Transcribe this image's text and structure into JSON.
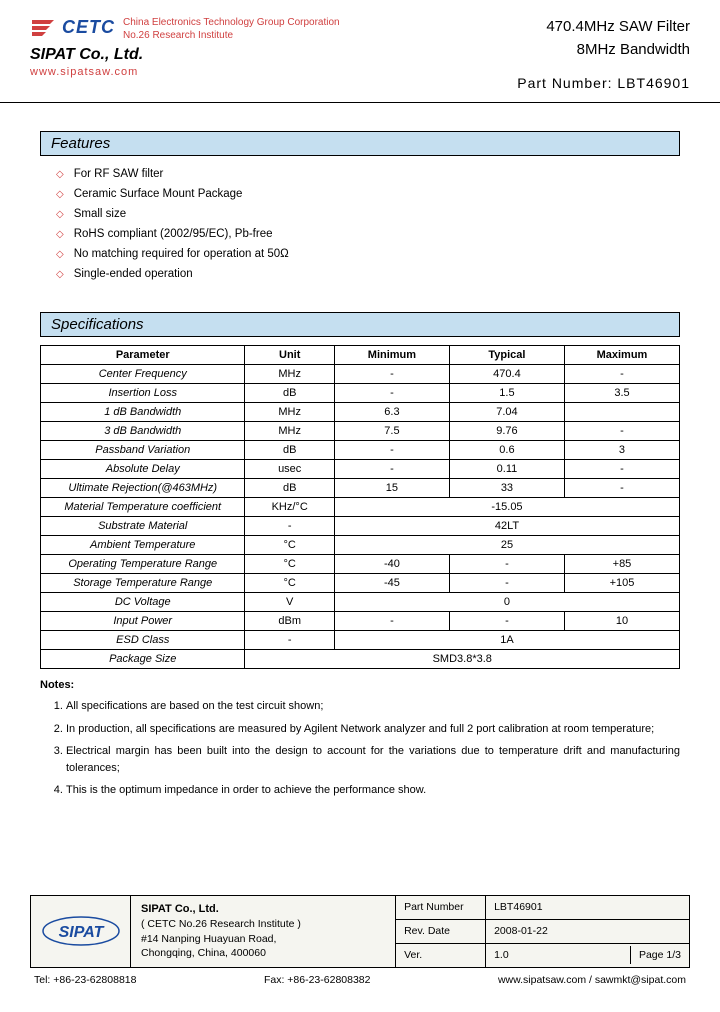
{
  "header": {
    "logo_text": "CETC",
    "logo_sub1": "China Electronics Technology Group Corporation",
    "logo_sub2": "No.26 Research Institute",
    "company": "SIPAT Co., Ltd.",
    "website": "www.sipatsaw.com",
    "title1": "470.4MHz SAW Filter",
    "title2": "8MHz Bandwidth",
    "part_label": "Part Number: LBT46901"
  },
  "features": {
    "title": "Features",
    "items": [
      "For RF SAW filter",
      "Ceramic Surface Mount Package",
      "Small size",
      "RoHS compliant (2002/95/EC), Pb-free",
      "No matching required for operation at 50Ω",
      "Single-ended operation"
    ]
  },
  "specs": {
    "title": "Specifications",
    "headers": [
      "Parameter",
      "Unit",
      "Minimum",
      "Typical",
      "Maximum"
    ],
    "rows": [
      {
        "p": "Center Frequency",
        "u": "MHz",
        "min": "-",
        "typ": "470.4",
        "max": "-"
      },
      {
        "p": "Insertion Loss",
        "u": "dB",
        "min": "-",
        "typ": "1.5",
        "max": "3.5"
      },
      {
        "p": "1 dB Bandwidth",
        "u": "MHz",
        "min": "6.3",
        "typ": "7.04",
        "max": ""
      },
      {
        "p": "3 dB Bandwidth",
        "u": "MHz",
        "min": "7.5",
        "typ": "9.76",
        "max": "-"
      },
      {
        "p": "Passband Variation",
        "u": "dB",
        "min": "-",
        "typ": "0.6",
        "max": "3"
      },
      {
        "p": "Absolute Delay",
        "u": "usec",
        "min": "-",
        "typ": "0.11",
        "max": "-"
      },
      {
        "p": "Ultimate Rejection(@463MHz)",
        "u": "dB",
        "min": "15",
        "typ": "33",
        "max": "-"
      },
      {
        "p": "Material Temperature coefficient",
        "u": "KHz/°C",
        "span": "-15.05"
      },
      {
        "p": "Substrate Material",
        "u": "-",
        "span": "42LT"
      },
      {
        "p": "Ambient Temperature",
        "u": "°C",
        "span": "25"
      },
      {
        "p": "Operating Temperature Range",
        "u": "°C",
        "min": "-40",
        "typ": "-",
        "max": "+85"
      },
      {
        "p": "Storage Temperature Range",
        "u": "°C",
        "min": "-45",
        "typ": "-",
        "max": "+105"
      },
      {
        "p": "DC Voltage",
        "u": "V",
        "span": "0"
      },
      {
        "p": "Input Power",
        "u": "dBm",
        "min": "-",
        "typ": "-",
        "max": "10"
      },
      {
        "p": "ESD Class",
        "u": "-",
        "span": "1A"
      },
      {
        "p": "Package Size",
        "full": "SMD3.8*3.8"
      }
    ]
  },
  "notes": {
    "title": "Notes:",
    "items": [
      "All specifications are based on the test circuit shown;",
      "In production, all specifications are measured by Agilent Network analyzer and full 2 port calibration at room temperature;",
      "Electrical margin has been built into the design to account for the variations due to temperature drift and manufacturing tolerances;",
      "This is the optimum impedance in order to achieve the performance show."
    ]
  },
  "footer": {
    "company": "SIPAT Co., Ltd.",
    "inst": "( CETC No.26 Research Institute )",
    "addr1": "#14 Nanping Huayuan Road,",
    "addr2": "Chongqing, China, 400060",
    "pn_label": "Part Number",
    "pn_val": "LBT46901",
    "rev_label": "Rev. Date",
    "rev_val": "2008-01-22",
    "ver_label": "Ver.",
    "ver_val": "1.0",
    "page_label": "Page  1/3",
    "tel": "Tel: +86-23-62808818",
    "fax": "Fax: +86-23-62808382",
    "web": "www.sipatsaw.com / sawmkt@sipat.com"
  },
  "colors": {
    "section_bg": "#c5dff0",
    "red": "#d04040",
    "blue": "#1a4ba0",
    "footer_bg": "#f5f5f0"
  }
}
